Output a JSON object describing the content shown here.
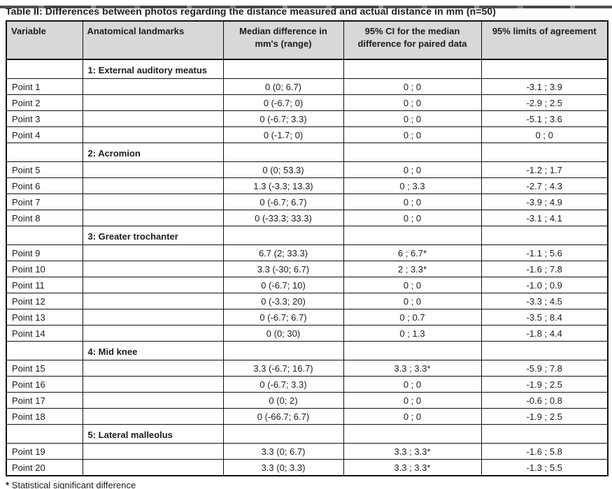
{
  "title": "Table II: Differences between photos regarding the distance measured and actual distance in mm (n=50)",
  "footnote": {
    "marker": "*",
    "text": " Statistical significant difference"
  },
  "table": {
    "columns": [
      "Variable",
      "Anatomical landmarks",
      "Median difference in mm's (range)",
      "95% CI for the median difference for paired data",
      "95% limits of agreement"
    ],
    "rows": [
      {
        "type": "section",
        "landmark": "1: External auditory meatus"
      },
      {
        "type": "data",
        "variable": "Point 1",
        "median": "0 (0; 6.7)",
        "ci": "0 ; 0",
        "loa": "-3.1 ; 3.9"
      },
      {
        "type": "data",
        "variable": "Point 2",
        "median": "0 (-6.7; 0)",
        "ci": "0 ; 0",
        "loa": "-2.9 ; 2.5"
      },
      {
        "type": "data",
        "variable": "Point 3",
        "median": "0 (-6.7; 3.3)",
        "ci": "0 ; 0",
        "loa": "-5.1 ; 3.6"
      },
      {
        "type": "data",
        "variable": "Point 4",
        "median": "0 (-1.7; 0)",
        "ci": "0 ; 0",
        "loa": "0 ; 0"
      },
      {
        "type": "section",
        "landmark": "2: Acromion"
      },
      {
        "type": "data",
        "variable": "Point 5",
        "median": "0 (0; 53.3)",
        "ci": "0 ; 0",
        "loa": "-1.2 ; 1.7"
      },
      {
        "type": "data",
        "variable": "Point 6",
        "median": "1.3 (-3.3; 13.3)",
        "ci": "0 ; 3.3",
        "loa": "-2.7 ; 4.3"
      },
      {
        "type": "data",
        "variable": "Point 7",
        "median": "0 (-6.7; 6.7)",
        "ci": "0 ; 0",
        "loa": "-3.9 ; 4.9"
      },
      {
        "type": "data",
        "variable": "Point 8",
        "median": "0 (-33.3; 33.3)",
        "ci": "0 ; 0",
        "loa": "-3.1 ; 4.1"
      },
      {
        "type": "section",
        "landmark": "3: Greater trochanter"
      },
      {
        "type": "data",
        "variable": "Point 9",
        "median": "6.7 (2; 33.3)",
        "ci": "6 ; 6.7*",
        "loa": "-1.1 ; 5.6"
      },
      {
        "type": "data",
        "variable": "Point 10",
        "median": "3.3 (-30; 6.7)",
        "ci": "2 ; 3.3*",
        "loa": "-1.6 ; 7.8"
      },
      {
        "type": "data",
        "variable": "Point 11",
        "median": "0 (-6.7; 10)",
        "ci": "0 ; 0",
        "loa": "-1.0 ; 0.9"
      },
      {
        "type": "data",
        "variable": "Point 12",
        "median": "0 (-3.3; 20)",
        "ci": "0 ; 0",
        "loa": "-3.3 ; 4.5"
      },
      {
        "type": "data",
        "variable": "Point 13",
        "median": "0 (-6.7; 6.7)",
        "ci": "0 ; 0.7",
        "loa": "-3.5 ; 8.4"
      },
      {
        "type": "data",
        "variable": "Point 14",
        "median": "0 (0; 30)",
        "ci": "0 ; 1.3",
        "loa": "-1.8 ; 4.4"
      },
      {
        "type": "section",
        "landmark": "4: Mid knee"
      },
      {
        "type": "data",
        "variable": "Point 15",
        "median": "3.3 (-6.7; 16.7)",
        "ci": "3.3 ; 3.3*",
        "loa": "-5.9 ; 7.8"
      },
      {
        "type": "data",
        "variable": "Point 16",
        "median": "0 (-6.7; 3.3)",
        "ci": "0 ; 0",
        "loa": "-1.9 ; 2.5"
      },
      {
        "type": "data",
        "variable": "Point 17",
        "median": "0 (0; 2)",
        "ci": "0 ; 0",
        "loa": "-0.6 ; 0.8"
      },
      {
        "type": "data",
        "variable": "Point 18",
        "median": "0 (-66.7; 6.7)",
        "ci": "0 ; 0",
        "loa": "-1.9 ; 2.5"
      },
      {
        "type": "section",
        "landmark": "5: Lateral malleolus"
      },
      {
        "type": "data",
        "variable": "Point 19",
        "median": "3.3 (0; 6.7)",
        "ci": "3.3 ; 3.3*",
        "loa": "-1.6 ; 5.8"
      },
      {
        "type": "data",
        "variable": "Point 20",
        "median": "3.3 (0; 3.3)",
        "ci": "3.3 ; 3.3*",
        "loa": "-1.3 ; 5.5"
      }
    ]
  },
  "colors": {
    "header_bg": "#d8d8d8",
    "border": "#111111",
    "text": "#1c1c1c"
  }
}
